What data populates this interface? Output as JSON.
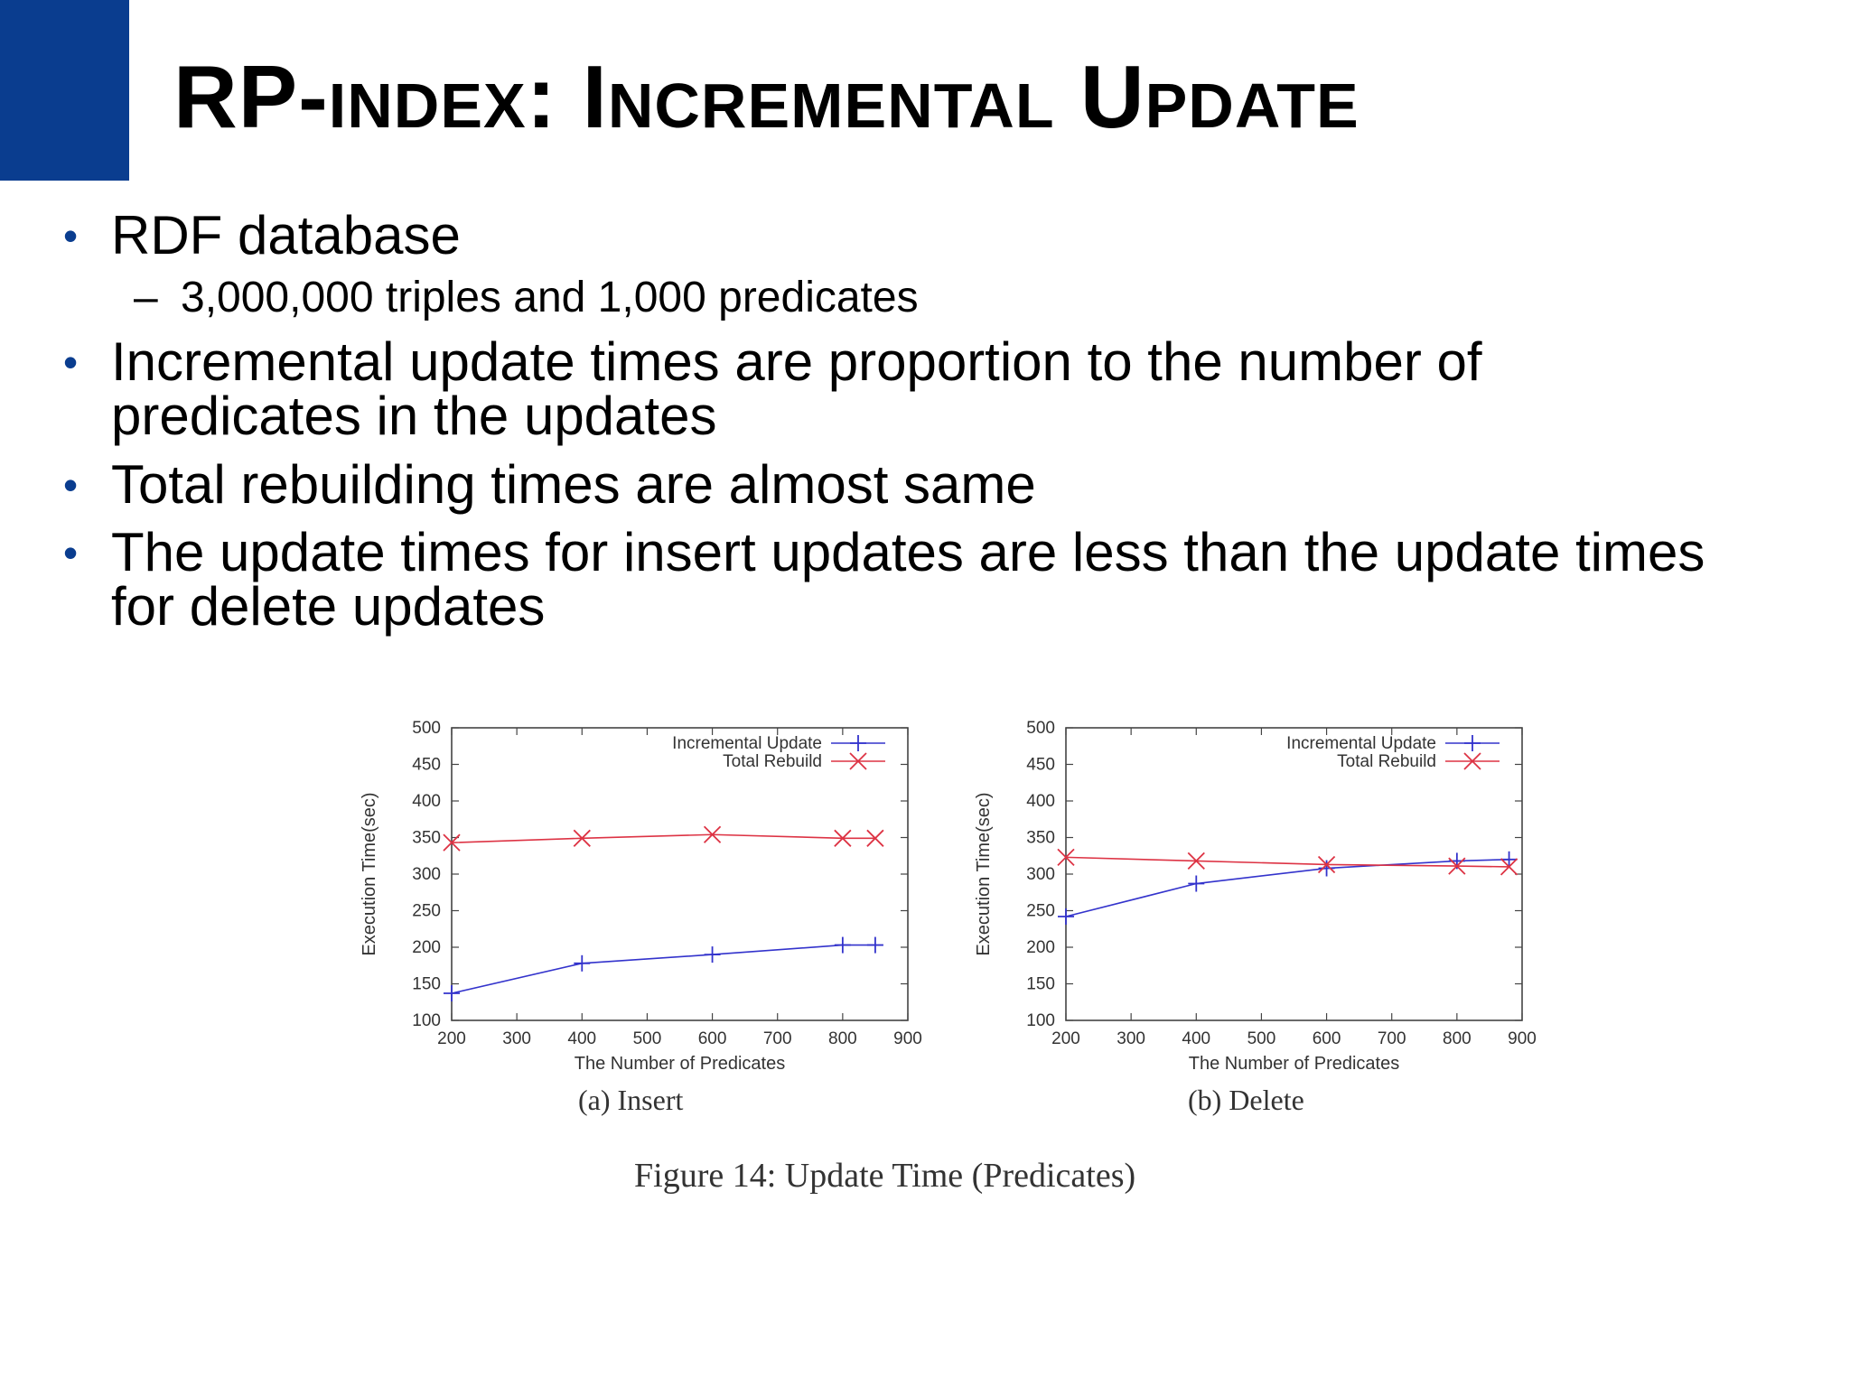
{
  "slide": {
    "title_big_1": "RP-",
    "title_small_1": "INDEX",
    "title_big_2": ": I",
    "title_small_2": "NCREMENTAL",
    "title_big_3": " U",
    "title_small_3": "PDATE",
    "accent_color": "#0a3d8f",
    "bullets": [
      "RDF database",
      "Incremental update times are proportion to the number of",
      "predicates in the updates",
      "Total rebuilding times are almost same",
      "The update times for insert updates are less than the update times",
      "for delete updates"
    ],
    "bullet_glyph": "•",
    "sub_bullet": {
      "dash": "–",
      "text": "3,000,000 triples and 1,000 predicates"
    }
  },
  "figure": {
    "caption": "Figure 14:  Update Time (Predicates)",
    "subcaption_a": "(a) Insert",
    "subcaption_b": "(b) Delete"
  },
  "chart_data": [
    {
      "type": "line",
      "xlabel": "The Number of Predicates",
      "ylabel": "Execution Time(sec)",
      "xlim": [
        200,
        900
      ],
      "ylim": [
        100,
        500
      ],
      "xticks": [
        200,
        300,
        400,
        500,
        600,
        700,
        800,
        900
      ],
      "yticks": [
        100,
        150,
        200,
        250,
        300,
        350,
        400,
        450,
        500
      ],
      "legend_position": "top-right",
      "series": [
        {
          "name": "Incremental Update",
          "color": "#3333cc",
          "marker": "plus",
          "x": [
            200,
            400,
            600,
            800,
            850
          ],
          "values": [
            137,
            178,
            190,
            203,
            203
          ]
        },
        {
          "name": "Total Rebuild",
          "color": "#dd3344",
          "marker": "cross",
          "x": [
            200,
            400,
            600,
            800,
            850
          ],
          "values": [
            343,
            349,
            354,
            349,
            349
          ]
        }
      ]
    },
    {
      "type": "line",
      "xlabel": "The Number of Predicates",
      "ylabel": "Execution Time(sec)",
      "xlim": [
        200,
        900
      ],
      "ylim": [
        100,
        500
      ],
      "xticks": [
        200,
        300,
        400,
        500,
        600,
        700,
        800,
        900
      ],
      "yticks": [
        100,
        150,
        200,
        250,
        300,
        350,
        400,
        450,
        500
      ],
      "legend_position": "top-right",
      "series": [
        {
          "name": "Incremental Update",
          "color": "#3333cc",
          "marker": "plus",
          "x": [
            200,
            400,
            600,
            800,
            880
          ],
          "values": [
            242,
            287,
            308,
            318,
            320
          ]
        },
        {
          "name": "Total Rebuild",
          "color": "#dd3344",
          "marker": "cross",
          "x": [
            200,
            400,
            600,
            800,
            880
          ],
          "values": [
            323,
            318,
            313,
            311,
            310
          ]
        }
      ]
    }
  ]
}
